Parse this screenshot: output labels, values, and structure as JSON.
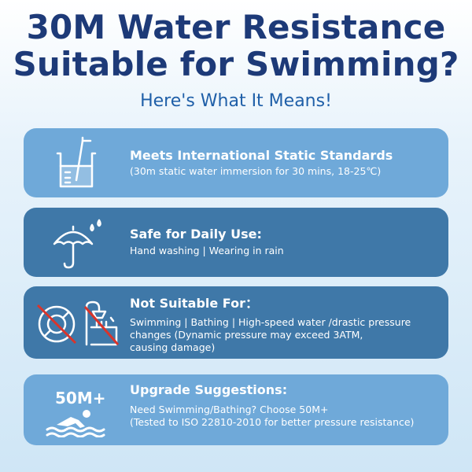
{
  "header": {
    "title_line1": "30M Water Resistance",
    "title_line2": "Suitable for Swimming?",
    "subtitle": "Here's What It Means!"
  },
  "cards": [
    {
      "heading": "Meets International Static Standards",
      "lines": [
        "(30m static water immersion for 30 mins, 18-25℃)"
      ],
      "icon": "beaker-icon"
    },
    {
      "heading": "Safe for Daily Use:",
      "lines": [
        "Hand washing | Wearing in rain"
      ],
      "icon": "umbrella-icon"
    },
    {
      "heading": "Not Suitable For：",
      "lines": [
        "Swimming | Bathing | High-speed water /drastic pressure",
        "changes (Dynamic pressure may exceed 3ATM,",
        "causing damage)"
      ],
      "icons": [
        "lifebuoy-icon",
        "shower-icon"
      ]
    },
    {
      "heading": "Upgrade Suggestions:",
      "lines": [
        "Need Swimming/Bathing? Choose 50M+",
        "(Tested to ISO 22810-2010 for better pressure resistance)"
      ],
      "badge": "50M+",
      "icon": "swimmer-icon"
    }
  ],
  "colors": {
    "title": "#1d3a78",
    "subtitle": "#1f5fa8",
    "card_light": "#6fa9d9",
    "card_dark": "#3f78a8",
    "prohibited": "#d9342b"
  }
}
